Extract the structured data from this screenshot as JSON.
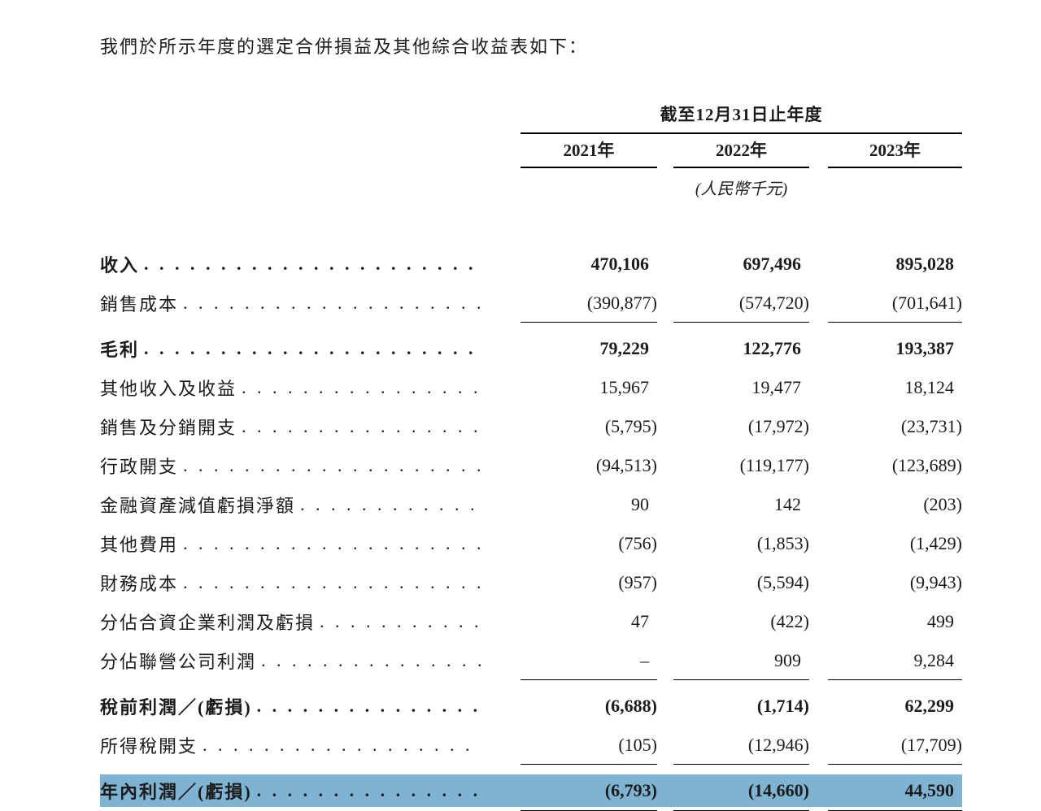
{
  "page": {
    "intro": "我們於所示年度的選定合併損益及其他綜合收益表如下："
  },
  "table": {
    "period_header": "截至12月31日止年度",
    "year_columns": [
      "2021年",
      "2022年",
      "2023年"
    ],
    "unit_note": "(人民幣千元)",
    "highlight_color": "#7eb3d2",
    "rows": [
      {
        "label": "收入",
        "values": [
          "470,106",
          "697,496",
          "895,028"
        ],
        "bold": true
      },
      {
        "label": "銷售成本",
        "values": [
          "(390,877)",
          "(574,720)",
          "(701,641)"
        ],
        "rule_below": true
      },
      {
        "label": "毛利",
        "values": [
          "79,229",
          "122,776",
          "193,387"
        ],
        "bold": true
      },
      {
        "label": "其他收入及收益",
        "values": [
          "15,967",
          "19,477",
          "18,124"
        ]
      },
      {
        "label": "銷售及分銷開支",
        "values": [
          "(5,795)",
          "(17,972)",
          "(23,731)"
        ]
      },
      {
        "label": "行政開支",
        "values": [
          "(94,513)",
          "(119,177)",
          "(123,689)"
        ]
      },
      {
        "label": "金融資產減值虧損淨額",
        "values": [
          "90",
          "142",
          "(203)"
        ]
      },
      {
        "label": "其他費用",
        "values": [
          "(756)",
          "(1,853)",
          "(1,429)"
        ]
      },
      {
        "label": "財務成本",
        "values": [
          "(957)",
          "(5,594)",
          "(9,943)"
        ]
      },
      {
        "label": "分佔合資企業利潤及虧損",
        "values": [
          "47",
          "(422)",
          "499"
        ]
      },
      {
        "label": "分佔聯營公司利潤",
        "values": [
          "–",
          "909",
          "9,284"
        ],
        "rule_below": true
      },
      {
        "label": "稅前利潤／(虧損)",
        "values": [
          "(6,688)",
          "(1,714)",
          "62,299"
        ],
        "bold": true
      },
      {
        "label": "所得稅開支",
        "values": [
          "(105)",
          "(12,946)",
          "(17,709)"
        ],
        "rule_below": true
      },
      {
        "label": "年內利潤／(虧損)",
        "values": [
          "(6,793)",
          "(14,660)",
          "44,590"
        ],
        "bold": true,
        "highlight": true,
        "double_rule_below": true
      }
    ]
  }
}
